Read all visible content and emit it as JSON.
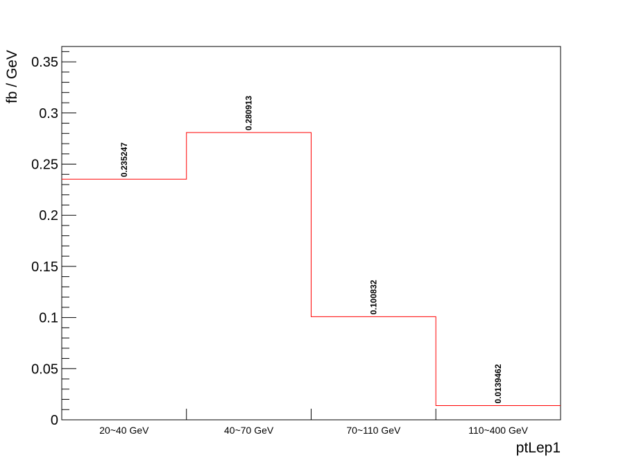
{
  "chart_data": {
    "type": "bar",
    "style": "step-histogram",
    "categories": [
      "20~40 GeV",
      "40~70 GeV",
      "70~110 GeV",
      "110~400 GeV"
    ],
    "values": [
      0.235247,
      0.280913,
      0.100832,
      0.0139462
    ],
    "value_labels": [
      "0.235247",
      "0.280913",
      "0.100832",
      "0.0139462"
    ],
    "xlabel": "ptLep1",
    "ylabel": "fb / GeV",
    "ylim": [
      0,
      0.365
    ],
    "yticks": [
      0,
      0.05,
      0.1,
      0.15,
      0.2,
      0.25,
      0.3,
      0.35
    ],
    "ytick_labels": [
      "0",
      "0.05",
      "0.1",
      "0.15",
      "0.2",
      "0.25",
      "0.3",
      "0.35"
    ],
    "grid": false,
    "line_color": "#ff0000"
  }
}
